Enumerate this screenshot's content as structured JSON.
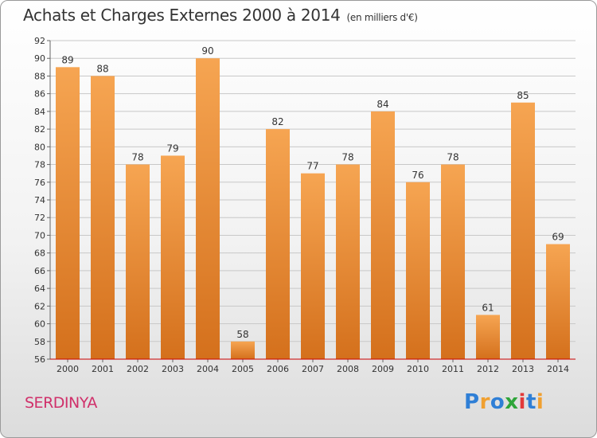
{
  "title": "Achats et Charges Externes 2000 à 2014",
  "subtitle": "(en milliers d'€)",
  "town": "SERDINYA",
  "logo": {
    "p1": "P",
    "p2": "r",
    "p3": "o",
    "p4": "x",
    "p5": "i",
    "p6": "t",
    "p7": "i"
  },
  "colors": {
    "bar_light": "#f6a552",
    "bar_dark": "#d4701c",
    "title_town": "#d0306a",
    "axis": "#cc0000"
  },
  "chart_data": {
    "type": "bar",
    "categories": [
      "2000",
      "2001",
      "2002",
      "2003",
      "2004",
      "2005",
      "2006",
      "2007",
      "2008",
      "2009",
      "2010",
      "2011",
      "2012",
      "2013",
      "2014"
    ],
    "values": [
      89,
      88,
      78,
      79,
      90,
      58,
      82,
      77,
      78,
      84,
      76,
      78,
      61,
      85,
      69
    ],
    "ylim": [
      56,
      92
    ],
    "yticks": [
      56,
      58,
      60,
      62,
      64,
      66,
      68,
      70,
      72,
      74,
      76,
      78,
      80,
      82,
      84,
      86,
      88,
      90,
      92
    ],
    "grid": true
  }
}
